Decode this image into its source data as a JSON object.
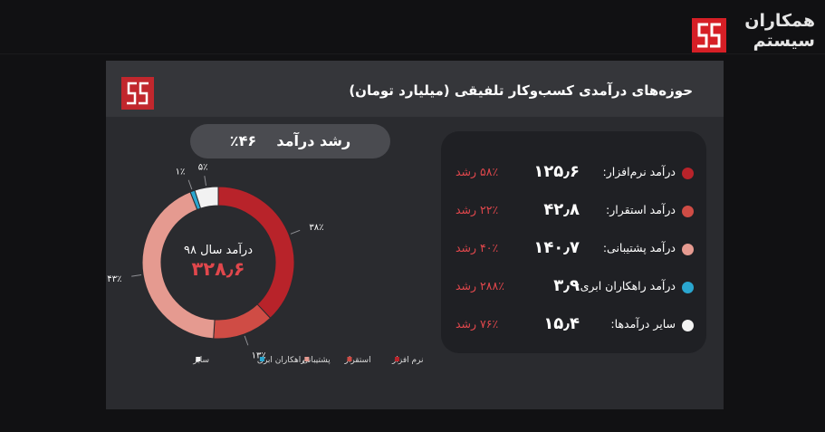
{
  "brand": {
    "line1": "همکاران",
    "line2": "سیستم",
    "logo_color": "#d61f26"
  },
  "slide": {
    "title": "حوزه‌های درآمدی کسب‌وکار تلفیقی (میلیارد تومان)",
    "growth_label": "رشد درآمد",
    "growth_value": "۴۶٪"
  },
  "chart_data": {
    "type": "pie",
    "variant": "donut",
    "center_label": "درآمد سال ۹۸",
    "center_value": "۳۲۸٫۶",
    "slices": [
      {
        "name": "نرم افزار",
        "value": 38,
        "label": "۳۸٪",
        "color": "#b8232a"
      },
      {
        "name": "استقرار",
        "value": 13,
        "label": "۱۳٪",
        "color": "#cf4c45"
      },
      {
        "name": "پشتیبانی",
        "value": 43,
        "label": "۴۳٪",
        "color": "#e59a90"
      },
      {
        "name": "راهکاران ابری",
        "value": 1,
        "label": "۱٪",
        "color": "#2aa6cf"
      },
      {
        "name": "سایر",
        "value": 5,
        "label": "۵٪",
        "color": "#f2f2f2"
      }
    ],
    "legend": [
      "سایر",
      "راهکاران ابری",
      "پشتیبانی",
      "استقرار",
      "نرم افزار"
    ],
    "legend_position": "bottom"
  },
  "revenues": [
    {
      "name": "درآمد نرم‌افزار:",
      "amount": "۱۲۵٫۶",
      "growth": "۵۸٪ رشد",
      "color": "#b8232a"
    },
    {
      "name": "درآمد استقرار:",
      "amount": "۴۲٫۸",
      "growth": "۲۲٪ رشد",
      "color": "#cf4c45"
    },
    {
      "name": "درآمد پشتیبانی:",
      "amount": "۱۴۰٫۷",
      "growth": "۴۰٪ رشد",
      "color": "#e59a90"
    },
    {
      "name": "درآمد راهکاران ابری:",
      "amount": "۳٫۹",
      "growth": "۲۸۸٪ رشد",
      "color": "#2aa6cf"
    },
    {
      "name": "سایر درآمدها:",
      "amount": "۱۵٫۴",
      "growth": "۷۶٪ رشد",
      "color": "#f2f2f2"
    }
  ]
}
